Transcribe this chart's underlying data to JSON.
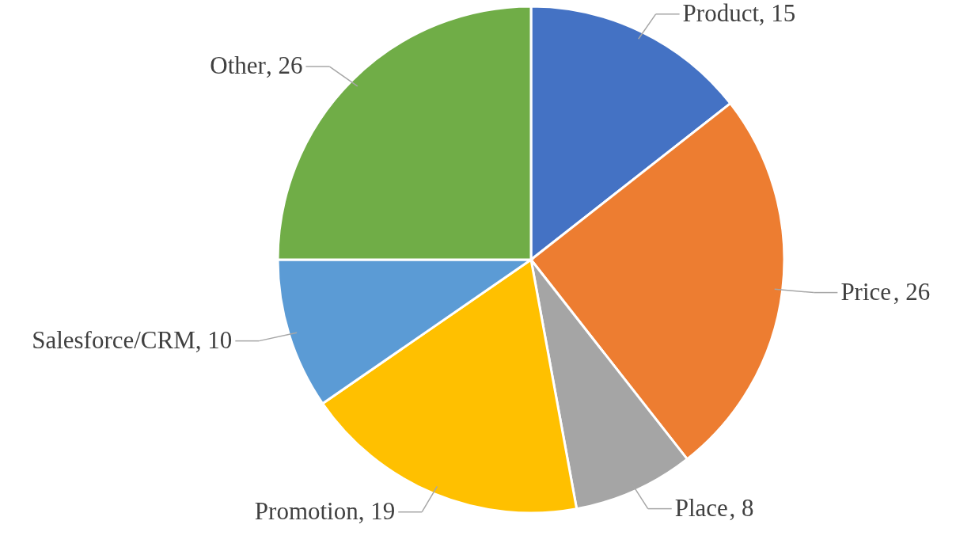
{
  "chart_data": {
    "type": "pie",
    "categories": [
      "Product",
      "Price",
      "Place",
      "Promotion",
      "Salesforce/CRM",
      "Other"
    ],
    "values": [
      15,
      26,
      8,
      19,
      10,
      26
    ],
    "value_labels": [
      ", 15",
      ", 26",
      ", 8",
      ", 19",
      ", 10",
      ", 26"
    ],
    "colors": [
      "#4472c4",
      "#ed7d31",
      "#a5a5a5",
      "#ffc000",
      "#5b9bd5",
      "#70ad47"
    ]
  }
}
